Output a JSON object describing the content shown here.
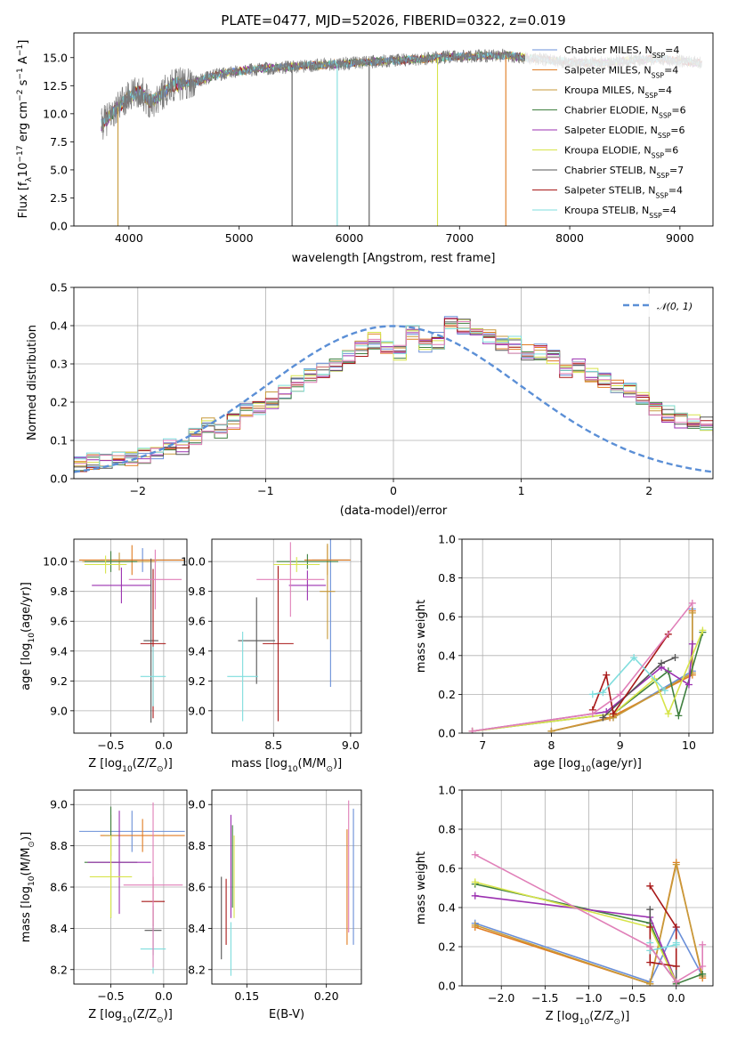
{
  "colors": {
    "Chabrier MILES": "#6a8fd8",
    "Salpeter MILES": "#e07b20",
    "Kroupa MILES": "#c79a3a",
    "Chabrier ELODIE": "#3f7f3f",
    "Salpeter ELODIE": "#9b30b0",
    "Kroupa ELODIE": "#d7e44a",
    "Chabrier STELIB": "#555555",
    "Salpeter STELIB": "#a81818",
    "Kroupa STELIB": "#7fdddd",
    "extra_pink": "#e07fb8",
    "normal_curve": "#5b8fd6"
  },
  "chart_data": [
    {
      "type": "line",
      "title": "PLATE=0477, MJD=52026, FIBERID=0322, z=0.019",
      "xlabel": "wavelength [Angstrom, rest frame]",
      "ylabel_main": "Flux [f",
      "ylabel_sub": "λ",
      "ylabel_rest": "10",
      "ylabel_exp1": "−17",
      "ylabel_mid": " erg cm",
      "ylabel_exp2": "−2",
      "ylabel_mid2": " s",
      "ylabel_exp3": "−1",
      "ylabel_end": " A",
      "ylabel_exp4": "−1",
      "ylabel_close": "]",
      "xlim": [
        3500,
        9300
      ],
      "ylim": [
        0,
        17.2
      ],
      "xticks": [
        4000,
        5000,
        6000,
        7000,
        8000,
        9000
      ],
      "yticks": [
        0.0,
        2.5,
        5.0,
        7.5,
        10.0,
        12.5,
        15.0
      ],
      "ytick_labels": [
        "0.0",
        "2.5",
        "5.0",
        "7.5",
        "10.0",
        "12.5",
        "15.0"
      ],
      "legend_position": "top-right",
      "series": [
        {
          "name": "Chabrier MILES, N",
          "sub": "SSP",
          "n": "=4"
        },
        {
          "name": "Salpeter MILES, N",
          "sub": "SSP",
          "n": "=4"
        },
        {
          "name": "Kroupa MILES, N",
          "sub": "SSP",
          "n": "=4"
        },
        {
          "name": "Chabrier ELODIE, N",
          "sub": "SSP",
          "n": "=6"
        },
        {
          "name": "Salpeter ELODIE, N",
          "sub": "SSP",
          "n": "=6"
        },
        {
          "name": "Kroupa ELODIE, N",
          "sub": "SSP",
          "n": "=6"
        },
        {
          "name": "Chabrier STELIB, N",
          "sub": "SSP",
          "n": "=7"
        },
        {
          "name": "Salpeter STELIB, N",
          "sub": "SSP",
          "n": "=4"
        },
        {
          "name": "Kroupa STELIB, N",
          "sub": "SSP",
          "n": "=4"
        }
      ],
      "continuum_x": [
        3750,
        3900,
        4000,
        4100,
        4200,
        4400,
        4600,
        4800,
        5000,
        5200,
        5500,
        6000,
        6500,
        7000,
        7400,
        7600,
        7800,
        8000,
        8200,
        8400,
        8600,
        8800,
        9000,
        9200
      ],
      "continuum_y": [
        9.0,
        10.6,
        11.5,
        12.0,
        11.0,
        12.6,
        12.8,
        13.5,
        13.8,
        14.0,
        14.2,
        14.5,
        14.8,
        15.1,
        15.2,
        15.0,
        14.8,
        14.6,
        14.5,
        14.6,
        14.8,
        14.9,
        14.7,
        14.5
      ],
      "dropouts": [
        {
          "x": 3900,
          "series": "Kroupa MILES"
        },
        {
          "x": 5480,
          "series": "Chabrier STELIB"
        },
        {
          "x": 5890,
          "series": "Kroupa STELIB"
        },
        {
          "x": 6180,
          "series": "Chabrier STELIB"
        },
        {
          "x": 6800,
          "series": "Kroupa ELODIE"
        },
        {
          "x": 7420,
          "series": "Salpeter MILES"
        }
      ]
    },
    {
      "type": "step",
      "xlabel": "(data-model)/error",
      "ylabel": "Normed distribution",
      "xlim": [
        -2.5,
        2.5
      ],
      "ylim": [
        0,
        0.5
      ],
      "xticks": [
        -2,
        -1,
        0,
        1,
        2
      ],
      "xtick_labels": [
        "−2",
        "−1",
        "0",
        "1",
        "2"
      ],
      "yticks": [
        0.0,
        0.1,
        0.2,
        0.3,
        0.4,
        0.5
      ],
      "ytick_labels": [
        "0.0",
        "0.1",
        "0.2",
        "0.3",
        "0.4",
        "0.5"
      ],
      "legend_label": "𝒩(0, 1)",
      "legend_position": "top-right",
      "bin_width": 0.1,
      "base_hist": [
        0.04,
        0.045,
        0.048,
        0.048,
        0.055,
        0.06,
        0.07,
        0.085,
        0.075,
        0.11,
        0.14,
        0.125,
        0.15,
        0.175,
        0.185,
        0.205,
        0.225,
        0.25,
        0.27,
        0.28,
        0.3,
        0.32,
        0.34,
        0.36,
        0.34,
        0.33,
        0.38,
        0.35,
        0.36,
        0.41,
        0.4,
        0.38,
        0.37,
        0.35,
        0.35,
        0.33,
        0.33,
        0.315,
        0.28,
        0.3,
        0.27,
        0.26,
        0.245,
        0.23,
        0.21,
        0.18,
        0.17,
        0.155,
        0.15,
        0.14,
        0.135,
        0.13,
        0.115,
        0.105,
        0.1,
        0.09,
        0.085,
        0.07,
        0.065,
        0.06,
        0.055,
        0.05,
        0.045,
        0.04,
        0.035,
        0.03,
        0.03,
        0.028,
        0.025,
        0.025
      ]
    },
    {
      "type": "errorbar",
      "xlabel": "Z [log",
      "xlabel_sub": "10",
      "xlabel_rest": "(Z/Z",
      "xlabel_sub2": "⊙",
      "xlabel_end": ")]",
      "ylabel": "age  [log",
      "ylabel_sub": "10",
      "ylabel_rest": "(age/yr)]",
      "xlim": [
        -0.85,
        0.22
      ],
      "ylim": [
        8.85,
        10.15
      ],
      "xticks": [
        -0.5,
        0.0
      ],
      "xtick_labels": [
        "−0.5",
        "0.0"
      ],
      "yticks": [
        9.0,
        9.2,
        9.4,
        9.6,
        9.8,
        10.0
      ],
      "ytick_labels": [
        "9.0",
        "9.2",
        "9.4",
        "9.6",
        "9.8",
        "10.0"
      ],
      "points": [
        {
          "x": -0.2,
          "y": 10.01,
          "xerr": 0.4,
          "yerr": 0.08,
          "c": "Chabrier MILES"
        },
        {
          "x": -0.3,
          "y": 10.01,
          "xerr": 0.5,
          "yerr": 0.1,
          "c": "Salpeter MILES"
        },
        {
          "x": -0.42,
          "y": 10.0,
          "xerr": 0.35,
          "yerr": 0.06,
          "c": "Kroupa MILES"
        },
        {
          "x": -0.5,
          "y": 10.0,
          "xerr": 0.25,
          "yerr": 0.07,
          "c": "Chabrier ELODIE"
        },
        {
          "x": -0.4,
          "y": 9.84,
          "xerr": 0.28,
          "yerr": 0.12,
          "c": "Salpeter ELODIE"
        },
        {
          "x": -0.55,
          "y": 9.98,
          "xerr": 0.2,
          "yerr": 0.06,
          "c": "Kroupa ELODIE"
        },
        {
          "x": -0.12,
          "y": 9.47,
          "xerr": 0.07,
          "yerr": 0.55,
          "c": "Chabrier STELIB"
        },
        {
          "x": -0.1,
          "y": 9.45,
          "xerr": 0.12,
          "yerr": 0.5,
          "c": "Salpeter STELIB"
        },
        {
          "x": -0.1,
          "y": 9.23,
          "xerr": 0.12,
          "yerr": 0.2,
          "c": "Kroupa STELIB"
        },
        {
          "x": -0.08,
          "y": 9.88,
          "xerr": 0.25,
          "yerr": 0.2,
          "c": "extra_pink"
        }
      ]
    },
    {
      "type": "errorbar",
      "xlabel": "mass [log",
      "xlabel_sub": "10",
      "xlabel_rest": "(M/M",
      "xlabel_sub2": "⊙",
      "xlabel_end": ")]",
      "xlim": [
        8.1,
        9.07
      ],
      "ylim": [
        8.85,
        10.15
      ],
      "xticks": [
        8.5,
        9.0
      ],
      "xtick_labels": [
        "8.5",
        "9.0"
      ],
      "yticks": [
        9.0,
        9.2,
        9.4,
        9.6,
        9.8,
        10.0
      ],
      "ytick_labels": [
        "9.0",
        "9.2",
        "9.4",
        "9.6",
        "9.8",
        "10.0"
      ],
      "points": [
        {
          "x": 8.87,
          "y": 10.01,
          "xerr": 0.12,
          "yerr": 0.85,
          "c": "Chabrier MILES"
        },
        {
          "x": 8.85,
          "y": 10.01,
          "xerr": 0.15,
          "yerr": 0.1,
          "c": "Salpeter MILES"
        },
        {
          "x": 8.85,
          "y": 9.8,
          "xerr": 0.05,
          "yerr": 0.32,
          "c": "Kroupa MILES"
        },
        {
          "x": 8.72,
          "y": 10.0,
          "xerr": 0.2,
          "yerr": 0.05,
          "c": "Chabrier ELODIE"
        },
        {
          "x": 8.72,
          "y": 9.84,
          "xerr": 0.12,
          "yerr": 0.1,
          "c": "Salpeter ELODIE"
        },
        {
          "x": 8.65,
          "y": 9.98,
          "xerr": 0.15,
          "yerr": 0.05,
          "c": "Kroupa ELODIE"
        },
        {
          "x": 8.39,
          "y": 9.47,
          "xerr": 0.12,
          "yerr": 0.29,
          "c": "Chabrier STELIB"
        },
        {
          "x": 8.53,
          "y": 9.45,
          "xerr": 0.1,
          "yerr": 0.52,
          "c": "Salpeter STELIB"
        },
        {
          "x": 8.3,
          "y": 9.23,
          "xerr": 0.1,
          "yerr": 0.3,
          "c": "Kroupa STELIB"
        },
        {
          "x": 8.61,
          "y": 9.88,
          "xerr": 0.22,
          "yerr": 0.25,
          "c": "extra_pink"
        }
      ]
    },
    {
      "type": "line",
      "xlabel": "age  [log",
      "xlabel_sub": "10",
      "xlabel_rest": "(age/yr)]",
      "ylabel": "mass weight",
      "xlim": [
        6.7,
        10.35
      ],
      "ylim": [
        0,
        1
      ],
      "xticks": [
        7,
        8,
        9,
        10
      ],
      "xtick_labels": [
        "7",
        "8",
        "9",
        "10"
      ],
      "yticks": [
        0.0,
        0.2,
        0.4,
        0.6,
        0.8,
        1.0
      ],
      "ytick_labels": [
        "0.0",
        "0.2",
        "0.4",
        "0.6",
        "0.8",
        "1.0"
      ],
      "lines": [
        {
          "c": "Chabrier MILES",
          "x": [
            8.0,
            8.9,
            10.05,
            10.05
          ],
          "y": [
            0.01,
            0.08,
            0.32,
            0.64
          ]
        },
        {
          "c": "Salpeter MILES",
          "x": [
            8.0,
            8.85,
            10.05,
            10.05
          ],
          "y": [
            0.01,
            0.08,
            0.3,
            0.63
          ]
        },
        {
          "c": "Kroupa MILES",
          "x": [
            8.0,
            8.9,
            10.05,
            10.05
          ],
          "y": [
            0.01,
            0.08,
            0.31,
            0.62
          ]
        },
        {
          "c": "Chabrier ELODIE",
          "x": [
            6.85,
            8.9,
            9.7,
            9.85,
            10.2
          ],
          "y": [
            0.01,
            0.1,
            0.32,
            0.09,
            0.52
          ]
        },
        {
          "c": "Salpeter ELODIE",
          "x": [
            6.85,
            8.8,
            9.6,
            10.0,
            10.05
          ],
          "y": [
            0.01,
            0.11,
            0.34,
            0.25,
            0.46
          ]
        },
        {
          "c": "Kroupa ELODIE",
          "x": [
            6.85,
            8.9,
            9.5,
            9.7,
            10.2
          ],
          "y": [
            0.01,
            0.1,
            0.28,
            0.1,
            0.53
          ]
        },
        {
          "c": "Chabrier STELIB",
          "x": [
            8.75,
            9.6,
            9.8
          ],
          "y": [
            0.08,
            0.36,
            0.39
          ]
        },
        {
          "c": "Salpeter STELIB",
          "x": [
            8.6,
            8.8,
            8.9,
            9.7
          ],
          "y": [
            0.12,
            0.3,
            0.1,
            0.51
          ]
        },
        {
          "c": "Kroupa STELIB",
          "x": [
            8.6,
            8.75,
            9.2,
            9.65
          ],
          "y": [
            0.2,
            0.21,
            0.39,
            0.22
          ]
        },
        {
          "c": "extra_pink",
          "x": [
            6.85,
            8.6,
            9.0,
            10.05
          ],
          "y": [
            0.01,
            0.1,
            0.2,
            0.67
          ]
        }
      ]
    },
    {
      "type": "errorbar",
      "xlabel": "Z [log",
      "xlabel_sub": "10",
      "xlabel_rest": "(Z/Z",
      "xlabel_sub2": "⊙",
      "xlabel_end": ")]",
      "ylabel": "mass [log",
      "ylabel_sub": "10",
      "ylabel_rest": "(M/M",
      "ylabel_sub2": "⊙",
      "ylabel_end": ")]",
      "xlim": [
        -0.85,
        0.22
      ],
      "ylim": [
        8.13,
        9.07
      ],
      "xticks": [
        -0.5,
        0.0
      ],
      "xtick_labels": [
        "−0.5",
        "0.0"
      ],
      "yticks": [
        8.2,
        8.4,
        8.6,
        8.8,
        9.0
      ],
      "ytick_labels": [
        "8.2",
        "8.4",
        "8.6",
        "8.8",
        "9.0"
      ],
      "points": [
        {
          "x": -0.3,
          "y": 8.87,
          "xerr": 0.5,
          "yerr": 0.1,
          "c": "Chabrier MILES"
        },
        {
          "x": -0.2,
          "y": 8.85,
          "xerr": 0.4,
          "yerr": 0.08,
          "c": "Salpeter MILES"
        },
        {
          "x": -0.5,
          "y": 8.85,
          "xerr": 0.06,
          "yerr": 0.1,
          "c": "Kroupa MILES"
        },
        {
          "x": -0.5,
          "y": 8.72,
          "xerr": 0.25,
          "yerr": 0.27,
          "c": "Chabrier ELODIE"
        },
        {
          "x": -0.42,
          "y": 8.72,
          "xerr": 0.3,
          "yerr": 0.25,
          "c": "Salpeter ELODIE"
        },
        {
          "x": -0.5,
          "y": 8.65,
          "xerr": 0.2,
          "yerr": 0.2,
          "c": "Kroupa ELODIE"
        },
        {
          "x": -0.1,
          "y": 8.39,
          "xerr": 0.08,
          "yerr": 0.12,
          "c": "Chabrier STELIB"
        },
        {
          "x": -0.1,
          "y": 8.53,
          "xerr": 0.11,
          "yerr": 0.12,
          "c": "Salpeter STELIB"
        },
        {
          "x": -0.1,
          "y": 8.3,
          "xerr": 0.12,
          "yerr": 0.12,
          "c": "Kroupa STELIB"
        },
        {
          "x": -0.1,
          "y": 8.61,
          "xerr": 0.28,
          "yerr": 0.4,
          "c": "extra_pink"
        }
      ]
    },
    {
      "type": "errorbar",
      "xlabel": "E(B-V)",
      "xlim": [
        0.128,
        0.222
      ],
      "ylim": [
        8.13,
        9.07
      ],
      "xticks": [
        0.15,
        0.2
      ],
      "xtick_labels": [
        "0.15",
        "0.20"
      ],
      "yticks": [
        8.2,
        8.4,
        8.6,
        8.8,
        9.0
      ],
      "ytick_labels": [
        "8.2",
        "8.4",
        "8.6",
        "8.8",
        "9.0"
      ],
      "points": [
        {
          "x": 0.217,
          "y": 8.65,
          "xerr": 0,
          "yerr": 0.33,
          "c": "Chabrier MILES"
        },
        {
          "x": 0.213,
          "y": 8.6,
          "xerr": 0,
          "yerr": 0.28,
          "c": "Salpeter MILES"
        },
        {
          "x": 0.141,
          "y": 8.7,
          "xerr": 0,
          "yerr": 0.2,
          "c": "Chabrier ELODIE"
        },
        {
          "x": 0.14,
          "y": 8.7,
          "xerr": 0,
          "yerr": 0.25,
          "c": "Salpeter ELODIE"
        },
        {
          "x": 0.142,
          "y": 8.65,
          "xerr": 0,
          "yerr": 0.2,
          "c": "Kroupa ELODIE"
        },
        {
          "x": 0.134,
          "y": 8.45,
          "xerr": 0,
          "yerr": 0.2,
          "c": "Chabrier STELIB"
        },
        {
          "x": 0.137,
          "y": 8.48,
          "xerr": 0,
          "yerr": 0.16,
          "c": "Salpeter STELIB"
        },
        {
          "x": 0.14,
          "y": 8.3,
          "xerr": 0,
          "yerr": 0.13,
          "c": "Kroupa STELIB"
        },
        {
          "x": 0.214,
          "y": 8.7,
          "xerr": 0,
          "yerr": 0.32,
          "c": "extra_pink"
        }
      ]
    },
    {
      "type": "line",
      "xlabel": "Z [log",
      "xlabel_sub": "10",
      "xlabel_rest": "(Z/Z",
      "xlabel_sub2": "⊙",
      "xlabel_end": ")]",
      "ylabel": "mass weight",
      "xlim": [
        -2.45,
        0.42
      ],
      "ylim": [
        0,
        1
      ],
      "xticks": [
        -2.0,
        -1.5,
        -1.0,
        -0.5,
        0.0
      ],
      "xtick_labels": [
        "−2.0",
        "−1.5",
        "−1.0",
        "−0.5",
        "0.0"
      ],
      "yticks": [
        0.0,
        0.2,
        0.4,
        0.6,
        0.8,
        1.0
      ],
      "ytick_labels": [
        "0.0",
        "0.2",
        "0.4",
        "0.6",
        "0.8",
        "1.0"
      ],
      "lines": [
        {
          "c": "Chabrier MILES",
          "x": [
            -2.3,
            -0.3,
            0.0,
            0.3
          ],
          "y": [
            0.32,
            0.02,
            0.3,
            0.05
          ]
        },
        {
          "c": "Salpeter MILES",
          "x": [
            -2.3,
            -0.3,
            0.0,
            0.3
          ],
          "y": [
            0.3,
            0.01,
            0.63,
            0.04
          ]
        },
        {
          "c": "Kroupa MILES",
          "x": [
            -2.3,
            -0.3,
            0.0,
            0.3
          ],
          "y": [
            0.31,
            0.01,
            0.62,
            0.05
          ]
        },
        {
          "c": "Chabrier ELODIE",
          "x": [
            -2.3,
            -0.3,
            0.0,
            0.3
          ],
          "y": [
            0.52,
            0.32,
            0.01,
            0.06
          ]
        },
        {
          "c": "Salpeter ELODIE",
          "x": [
            -2.3,
            -0.3,
            0.0
          ],
          "y": [
            0.46,
            0.35,
            0.02
          ]
        },
        {
          "c": "Kroupa ELODIE",
          "x": [
            -2.3,
            -0.3,
            0.0
          ],
          "y": [
            0.53,
            0.3,
            0.02
          ]
        },
        {
          "c": "Chabrier STELIB",
          "x": [
            -0.3,
            -0.3,
            0.0,
            0.0
          ],
          "y": [
            0.39,
            0.2,
            0.02,
            0.1
          ]
        },
        {
          "c": "Salpeter STELIB",
          "x": [
            -0.3,
            0.0,
            0.0,
            -0.3,
            -0.3
          ],
          "y": [
            0.51,
            0.3,
            0.1,
            0.12,
            0.3
          ]
        },
        {
          "c": "Kroupa STELIB",
          "x": [
            -0.3,
            -0.3,
            0.0,
            0.0
          ],
          "y": [
            0.22,
            0.18,
            0.21,
            0.22
          ]
        },
        {
          "c": "extra_pink",
          "x": [
            -2.3,
            -0.3,
            0.0,
            0.3,
            0.3
          ],
          "y": [
            0.67,
            0.2,
            0.02,
            0.1,
            0.21
          ]
        }
      ]
    }
  ]
}
